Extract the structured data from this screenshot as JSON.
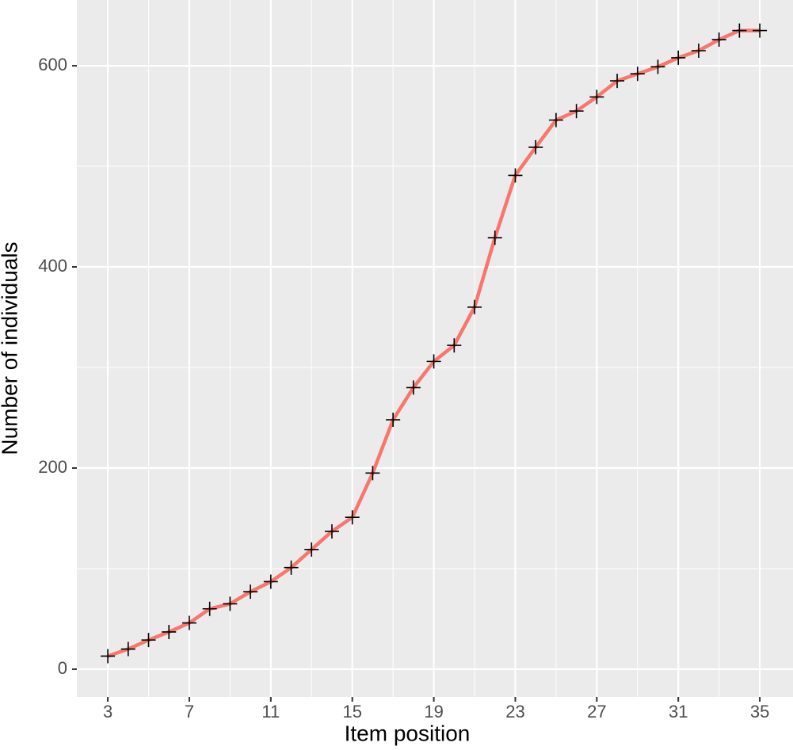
{
  "chart_data": {
    "type": "line",
    "x_label": "Item position",
    "y_label": "Number of individuals",
    "x": [
      3,
      4,
      5,
      6,
      7,
      8,
      9,
      10,
      11,
      12,
      13,
      14,
      15,
      16,
      17,
      18,
      19,
      20,
      21,
      22,
      23,
      24,
      25,
      26,
      27,
      28,
      29,
      30,
      31,
      32,
      33,
      34,
      35
    ],
    "series": [
      {
        "color": "#f8766d",
        "marker_color": "#000000",
        "values": [
          13,
          20,
          29,
          37,
          46,
          60,
          65,
          77,
          87,
          101,
          119,
          137,
          151,
          195,
          248,
          280,
          306,
          322,
          360,
          429,
          491,
          519,
          546,
          555,
          569,
          585,
          592,
          599,
          608,
          615,
          626,
          635,
          635
        ]
      }
    ],
    "xlim": [
      1.48,
      36.63
    ],
    "xticks": [
      3,
      7,
      11,
      15,
      19,
      23,
      27,
      31,
      35
    ],
    "ylim": [
      -27.6,
      665.4
    ],
    "yticks": [
      0,
      200,
      400,
      600
    ],
    "grid": true,
    "minor_grid": true,
    "background": "#ebebeb"
  }
}
